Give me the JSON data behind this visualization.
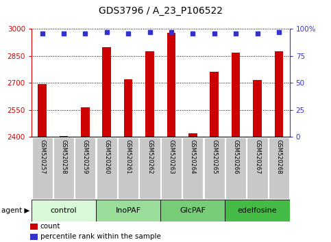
{
  "title": "GDS3796 / A_23_P106522",
  "samples": [
    "GSM520257",
    "GSM520258",
    "GSM520259",
    "GSM520260",
    "GSM520261",
    "GSM520262",
    "GSM520263",
    "GSM520264",
    "GSM520265",
    "GSM520266",
    "GSM520267",
    "GSM520268"
  ],
  "bar_values": [
    2695,
    2405,
    2565,
    2900,
    2720,
    2875,
    2980,
    2420,
    2760,
    2870,
    2715,
    2875
  ],
  "percentile_values": [
    96,
    96,
    96,
    97,
    96,
    97,
    97,
    96,
    96,
    96,
    96,
    97
  ],
  "ymin": 2400,
  "ymax": 3000,
  "yticks": [
    2400,
    2550,
    2700,
    2850,
    3000
  ],
  "right_yticks": [
    0,
    25,
    50,
    75,
    100
  ],
  "bar_color": "#cc0000",
  "dot_color": "#3333cc",
  "groups": [
    {
      "label": "control",
      "start": 0,
      "end": 3,
      "color": "#d9f7d9"
    },
    {
      "label": "InoPAF",
      "start": 3,
      "end": 6,
      "color": "#99dd99"
    },
    {
      "label": "GlcPAF",
      "start": 6,
      "end": 9,
      "color": "#77cc77"
    },
    {
      "label": "edelfosine",
      "start": 9,
      "end": 12,
      "color": "#44bb44"
    }
  ],
  "bar_width": 0.4,
  "title_fontsize": 10,
  "tick_fontsize": 7.5,
  "sample_fontsize": 6,
  "group_fontsize": 8,
  "legend_fontsize": 7.5
}
